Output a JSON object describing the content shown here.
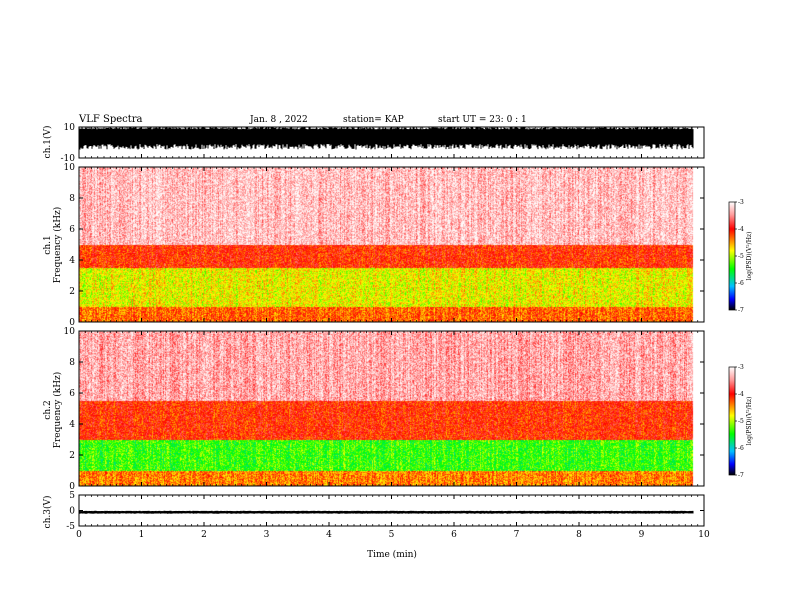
{
  "header": {
    "title": "VLF Spectra",
    "date": "Jan. 8  , 2022",
    "station": "station= KAP",
    "start_ut": "start  UT  =   23: 0  : 1"
  },
  "colors": {
    "waveform": "#000000",
    "spec_top": "#ff0000",
    "spec_mid": "#ffff00",
    "spec_low": "#00ff00",
    "axis": "#000000"
  },
  "colorbar": {
    "label": "log(PSD)(V²/Hz)",
    "ticks": [
      "-3",
      "-4",
      "-5",
      "-6",
      "-7"
    ],
    "range": [
      -7,
      -3
    ]
  },
  "chart_data": [
    {
      "type": "line",
      "name": "ch1-waveform",
      "ylabel": "ch.1(V)",
      "ylim": [
        -10,
        10
      ],
      "yticks": [
        "10",
        "-10"
      ],
      "xlim": [
        0,
        10
      ],
      "description_values": {
        "typical_min": -4,
        "typical_max": 10
      }
    },
    {
      "type": "heatmap",
      "name": "ch1-spectrogram",
      "ylabel": "ch.1\nFrequency  (kHz)",
      "ylabel_line1": "ch.1",
      "ylabel_line2": "Frequency  (kHz)",
      "ylim": [
        0,
        10
      ],
      "yticks": [
        "0",
        "2",
        "4",
        "6",
        "8",
        "10"
      ],
      "xlim": [
        0,
        10
      ],
      "data_end_min": 9.83,
      "bands_khz": [
        {
          "from": 0,
          "to": 1.0,
          "level": -4.3
        },
        {
          "from": 1.0,
          "to": 3.5,
          "level": -4.8
        },
        {
          "from": 3.5,
          "to": 5.0,
          "level": -4.1
        },
        {
          "from": 5.0,
          "to": 10.0,
          "level": -3.3
        }
      ]
    },
    {
      "type": "heatmap",
      "name": "ch2-spectrogram",
      "ylabel": "ch.2\nFrequency  (kHz)",
      "ylabel_line1": "ch.2",
      "ylabel_line2": "Frequency  (kHz)",
      "ylim": [
        0,
        10
      ],
      "yticks": [
        "0",
        "2",
        "4",
        "6",
        "8",
        "10"
      ],
      "xlim": [
        0,
        10
      ],
      "data_end_min": 9.83,
      "bands_khz": [
        {
          "from": 0,
          "to": 1.0,
          "level": -4.4
        },
        {
          "from": 1.0,
          "to": 3.0,
          "level": -5.3
        },
        {
          "from": 3.0,
          "to": 5.5,
          "level": -4.1
        },
        {
          "from": 5.5,
          "to": 10.0,
          "level": -3.4
        }
      ]
    },
    {
      "type": "line",
      "name": "ch3-waveform",
      "ylabel": "ch.3(V)",
      "ylim": [
        -5,
        5
      ],
      "yticks": [
        "5",
        "0",
        "-5"
      ],
      "xlim": [
        0,
        10
      ],
      "xlabel": "Time  (min)",
      "xticks": [
        "0",
        "1",
        "2",
        "3",
        "4",
        "5",
        "6",
        "7",
        "8",
        "9",
        "10"
      ],
      "description_values": {
        "typical_min": -1.0,
        "typical_max": 0.0
      }
    }
  ]
}
